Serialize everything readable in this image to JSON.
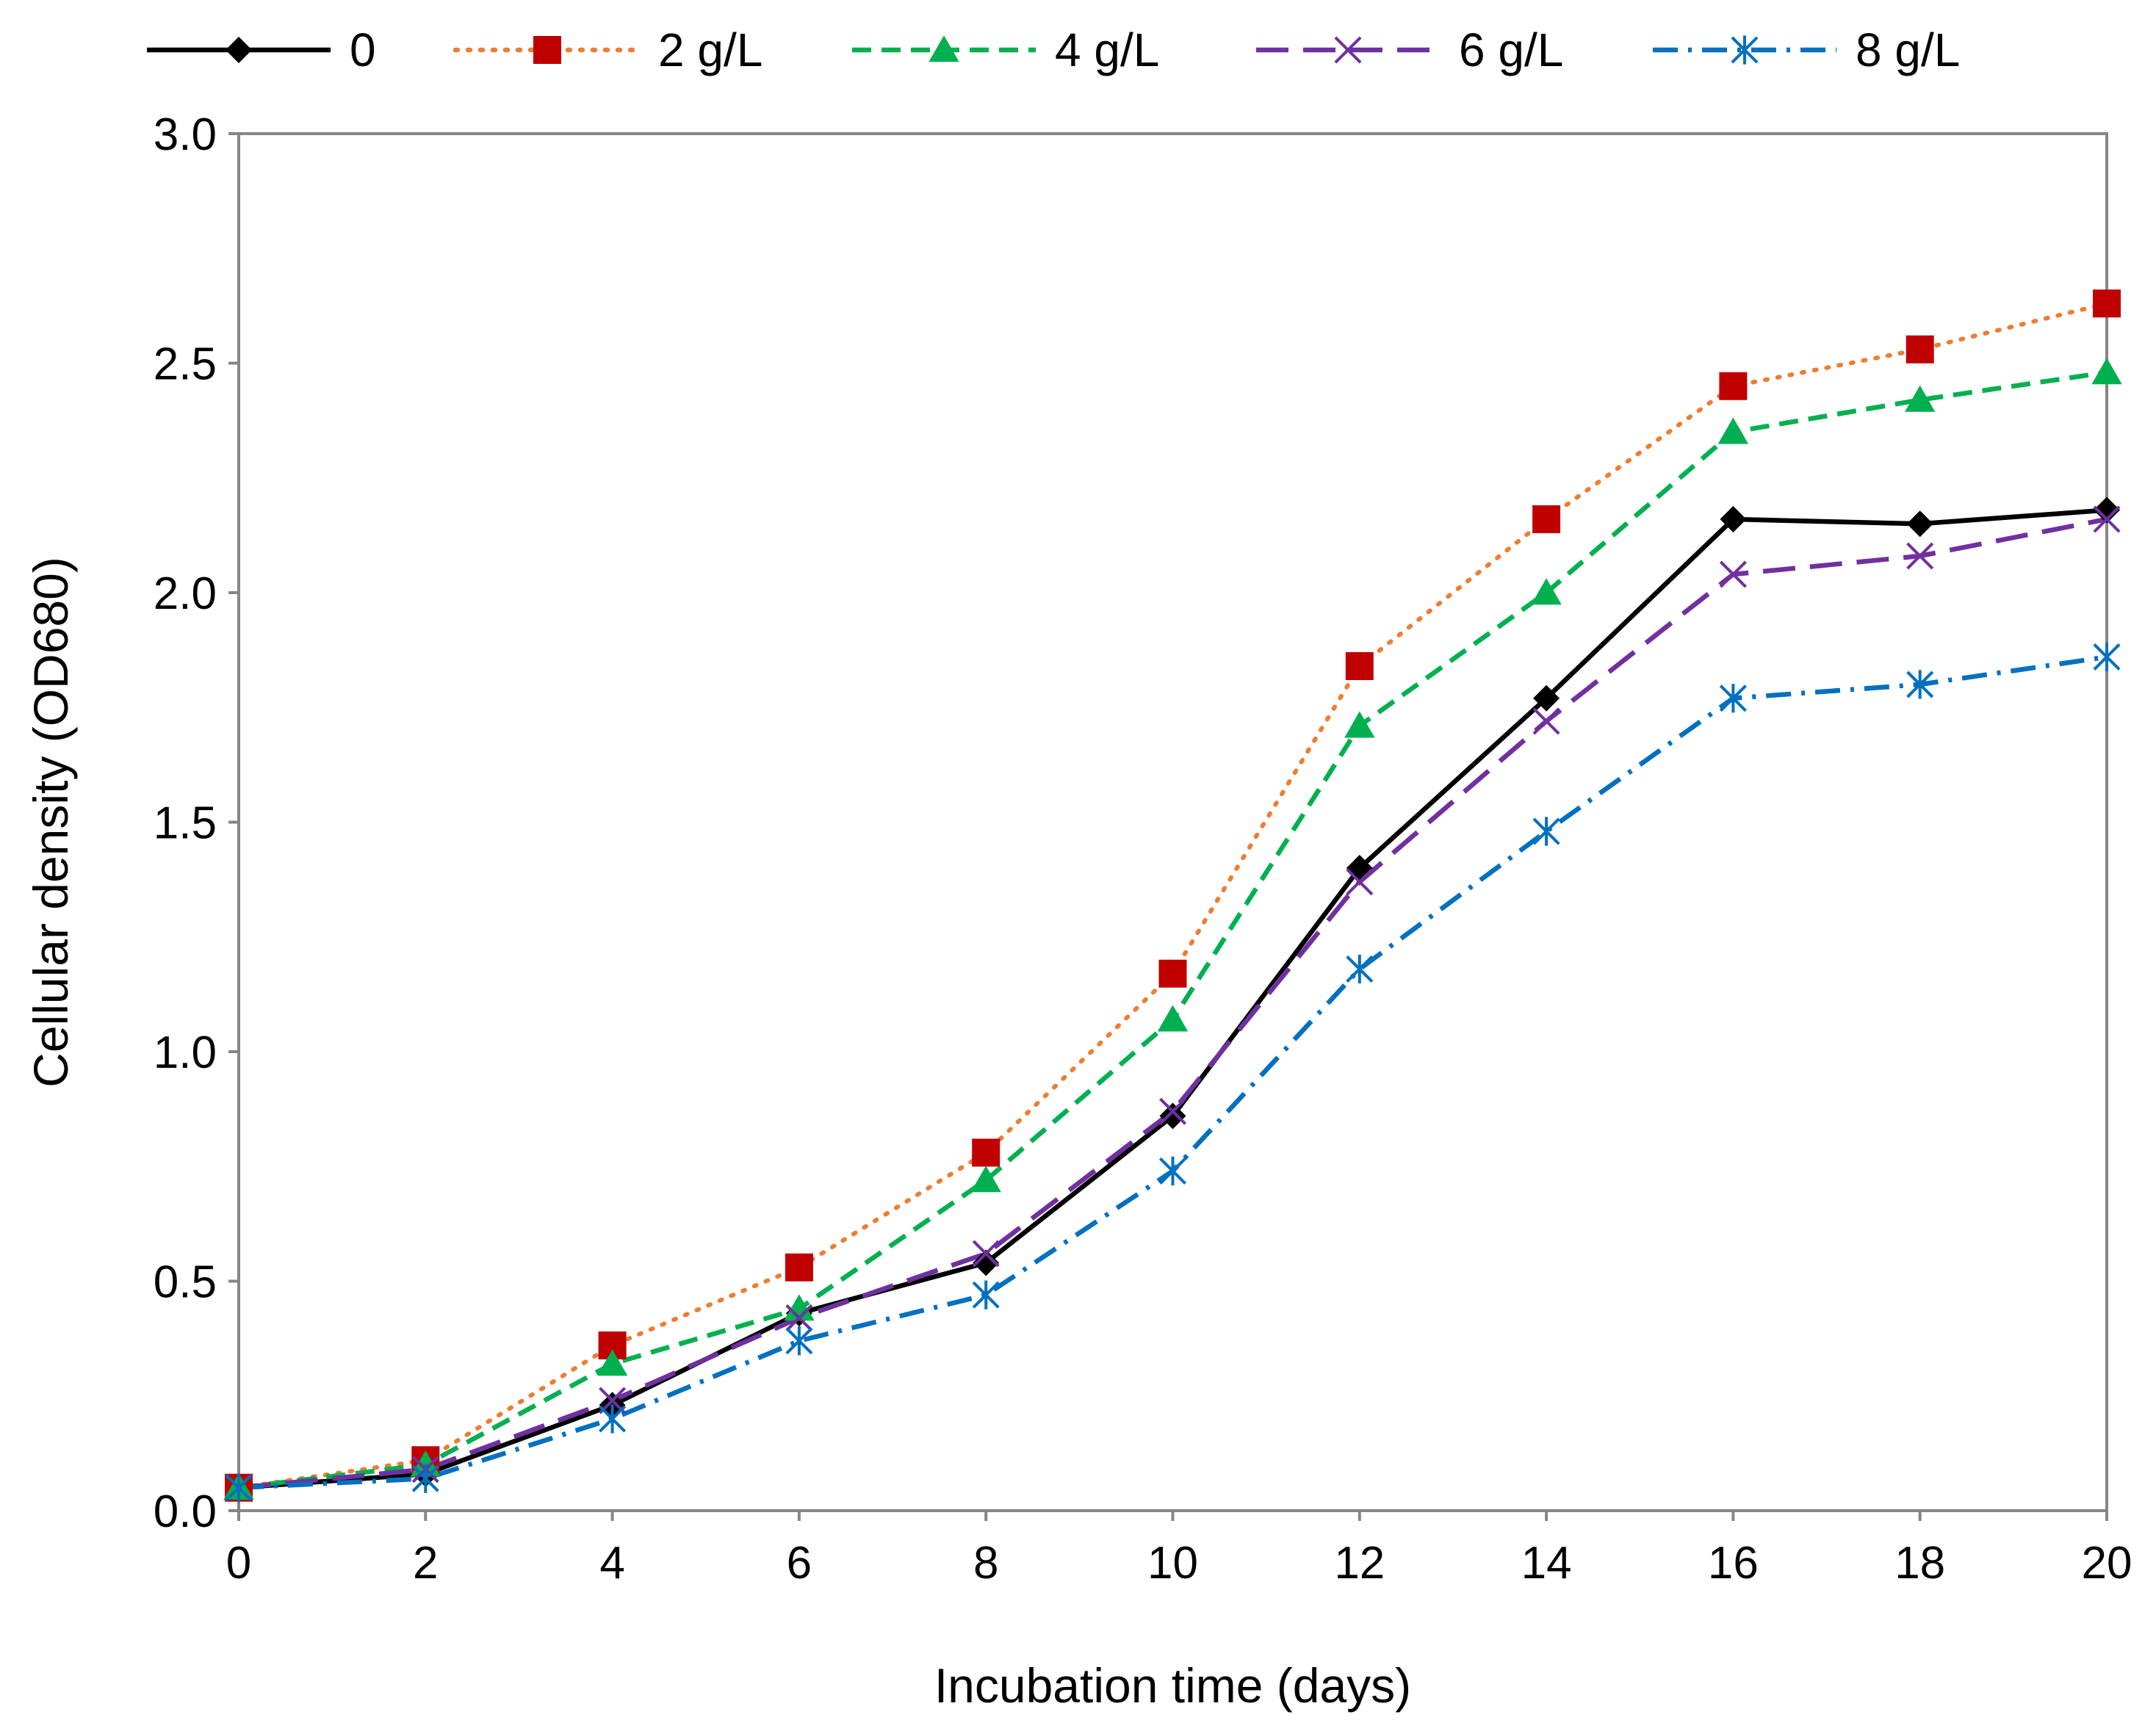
{
  "chart_data": {
    "type": "line",
    "title": "",
    "xlabel": "Incubation time (days)",
    "ylabel": "Cellular density (OD680)",
    "x": [
      0,
      2,
      4,
      6,
      8,
      10,
      12,
      14,
      16,
      18,
      20
    ],
    "xlim": [
      0,
      20
    ],
    "ylim": [
      0.0,
      3.0
    ],
    "xticks": [
      0,
      2,
      4,
      6,
      8,
      10,
      12,
      14,
      16,
      18,
      20
    ],
    "yticks": [
      0.0,
      0.5,
      1.0,
      1.5,
      2.0,
      2.5,
      3.0
    ],
    "ytick_labels": [
      "0.0",
      "0.5",
      "1.0",
      "1.5",
      "2.0",
      "2.5",
      "3.0"
    ],
    "grid": false,
    "legend_position": "top",
    "series": [
      {
        "name": "0",
        "color": "#000000",
        "marker_color": "#000000",
        "line_style": "solid",
        "marker": "diamond",
        "values": [
          0.05,
          0.08,
          0.23,
          0.43,
          0.54,
          0.86,
          1.4,
          1.77,
          2.16,
          2.15,
          2.18
        ]
      },
      {
        "name": "2 g/L",
        "color": "#ED7D31",
        "marker_color": "#C00000",
        "line_style": "dotted",
        "marker": "square",
        "values": [
          0.05,
          0.11,
          0.36,
          0.53,
          0.78,
          1.17,
          1.84,
          2.16,
          2.45,
          2.53,
          2.63
        ]
      },
      {
        "name": "4 g/L",
        "color": "#00B050",
        "marker_color": "#00B050",
        "line_style": "dashed",
        "marker": "triangle",
        "values": [
          0.05,
          0.1,
          0.32,
          0.44,
          0.72,
          1.07,
          1.71,
          2.0,
          2.35,
          2.42,
          2.48
        ]
      },
      {
        "name": "6 g/L",
        "color": "#7030A0",
        "marker_color": "#7030A0",
        "line_style": "longdash",
        "marker": "x",
        "values": [
          0.05,
          0.09,
          0.24,
          0.42,
          0.56,
          0.87,
          1.37,
          1.72,
          2.04,
          2.08,
          2.16
        ]
      },
      {
        "name": "8 g/L",
        "color": "#0070C0",
        "marker_color": "#0070C0",
        "line_style": "dashdot",
        "marker": "star",
        "values": [
          0.05,
          0.07,
          0.2,
          0.37,
          0.47,
          0.74,
          1.18,
          1.48,
          1.77,
          1.8,
          1.86
        ]
      }
    ]
  }
}
